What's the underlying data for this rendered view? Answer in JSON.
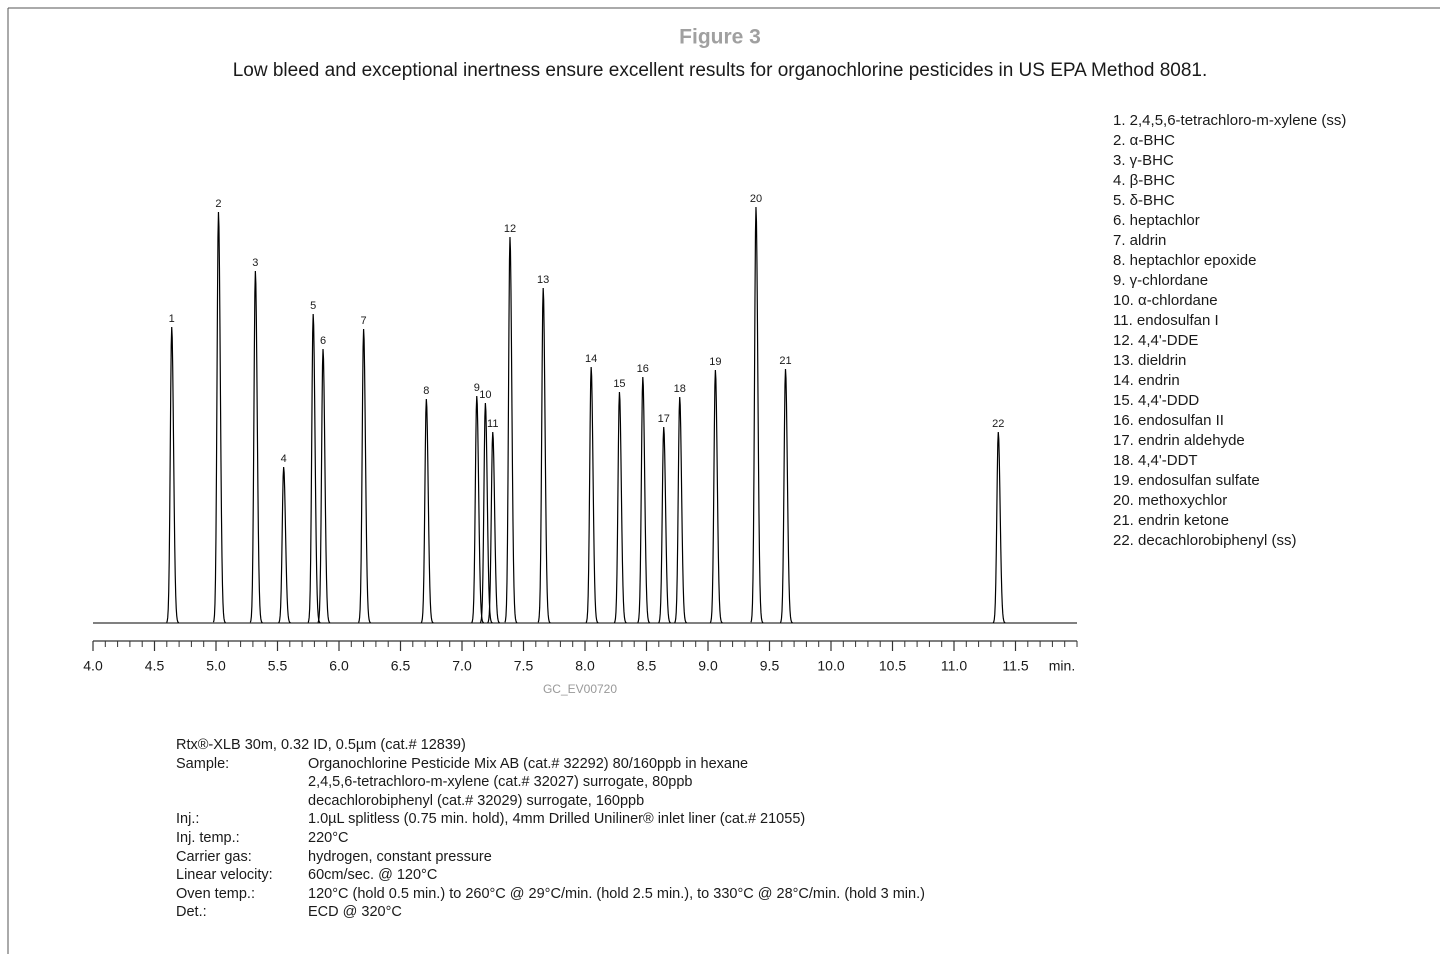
{
  "chart_data": {
    "type": "chromatogram",
    "title": "Figure 3",
    "subtitle": "Low bleed and exceptional inertness ensure excellent results for organochlorine pesticides in US EPA Method 8081.",
    "x": [
      4.64,
      5.02,
      5.32,
      5.55,
      5.79,
      5.87,
      6.2,
      6.71,
      7.12,
      7.19,
      7.25,
      7.39,
      7.66,
      8.05,
      8.28,
      8.47,
      8.64,
      8.77,
      9.06,
      9.39,
      9.63,
      11.36
    ],
    "values": [
      296,
      411,
      352,
      156,
      309,
      274,
      294,
      224,
      227,
      220,
      191,
      386,
      335,
      256,
      231,
      246,
      196,
      226,
      253,
      416,
      254,
      191
    ],
    "labels": [
      "1",
      "2",
      "3",
      "4",
      "5",
      "6",
      "7",
      "8",
      "9",
      "10",
      "11",
      "12",
      "13",
      "14",
      "15",
      "16",
      "17",
      "18",
      "19",
      "20",
      "21",
      "22"
    ],
    "color": "#000000",
    "xlim": [
      4.0,
      12.0
    ],
    "xticks": [
      {
        "value": 4,
        "label": "4.0"
      },
      {
        "value": 4.5,
        "label": "4.5"
      },
      {
        "value": 5,
        "label": "5.0"
      },
      {
        "value": 5.5,
        "label": "5.5"
      },
      {
        "value": 6,
        "label": "6.0"
      },
      {
        "value": 6.5,
        "label": "6.5"
      },
      {
        "value": 7,
        "label": "7.0"
      },
      {
        "value": 7.5,
        "label": "7.5"
      },
      {
        "value": 8,
        "label": "8.0"
      },
      {
        "value": 8.5,
        "label": "8.5"
      },
      {
        "value": 9,
        "label": "9.0"
      },
      {
        "value": 9.5,
        "label": "9.5"
      },
      {
        "value": 10,
        "label": "10.0"
      },
      {
        "value": 10.5,
        "label": "10.5"
      },
      {
        "value": 11,
        "label": "11.0"
      },
      {
        "value": 11.5,
        "label": "11.5"
      }
    ],
    "xlabel": "min.",
    "footnote": "GC_EV00720",
    "peak_list": [
      "1. 2,4,5,6-tetrachloro-m-xylene (ss)",
      "2. α-BHC",
      "3. γ-BHC",
      "4. β-BHC",
      "5. δ-BHC",
      "6. heptachlor",
      "7. aldrin",
      "8. heptachlor epoxide",
      "9. γ-chlordane",
      "10. α-chlordane",
      "11. endosulfan I",
      "12. 4,4'-DDE",
      "13. dieldrin",
      "14. endrin",
      "15. 4,4'-DDD",
      "16. endosulfan II",
      "17. endrin aldehyde",
      "18. 4,4'-DDT",
      "19. endosulfan sulfate",
      "20. methoxychlor",
      "21. endrin ketone",
      "22. decachlorobiphenyl (ss)"
    ]
  },
  "conditions": {
    "column": "Rtx®-XLB 30m, 0.32 ID, 0.5µm (cat.# 12839)",
    "rows": [
      {
        "label": "Sample:",
        "lines": [
          "Organochlorine Pesticide Mix AB (cat.# 32292) 80/160ppb in hexane",
          "2,4,5,6-tetrachloro-m-xylene (cat.# 32027) surrogate, 80ppb",
          "decachlorobiphenyl (cat.# 32029) surrogate, 160ppb"
        ]
      },
      {
        "label": "Inj.:",
        "lines": [
          "1.0µL splitless (0.75 min. hold), 4mm Drilled Uniliner® inlet liner (cat.# 21055)"
        ]
      },
      {
        "label": "Inj. temp.:",
        "lines": [
          "220°C"
        ]
      },
      {
        "label": "Carrier gas:",
        "lines": [
          "hydrogen, constant pressure"
        ]
      },
      {
        "label": "Linear velocity:",
        "lines": [
          "60cm/sec. @ 120°C"
        ]
      },
      {
        "label": "Oven temp.:",
        "lines": [
          "120°C (hold 0.5 min.) to 260°C @ 29°C/min. (hold 2.5 min.), to 330°C @ 28°C/min. (hold 3 min.)"
        ]
      },
      {
        "label": "Det.:",
        "lines": [
          "ECD @ 320°C"
        ]
      }
    ]
  }
}
